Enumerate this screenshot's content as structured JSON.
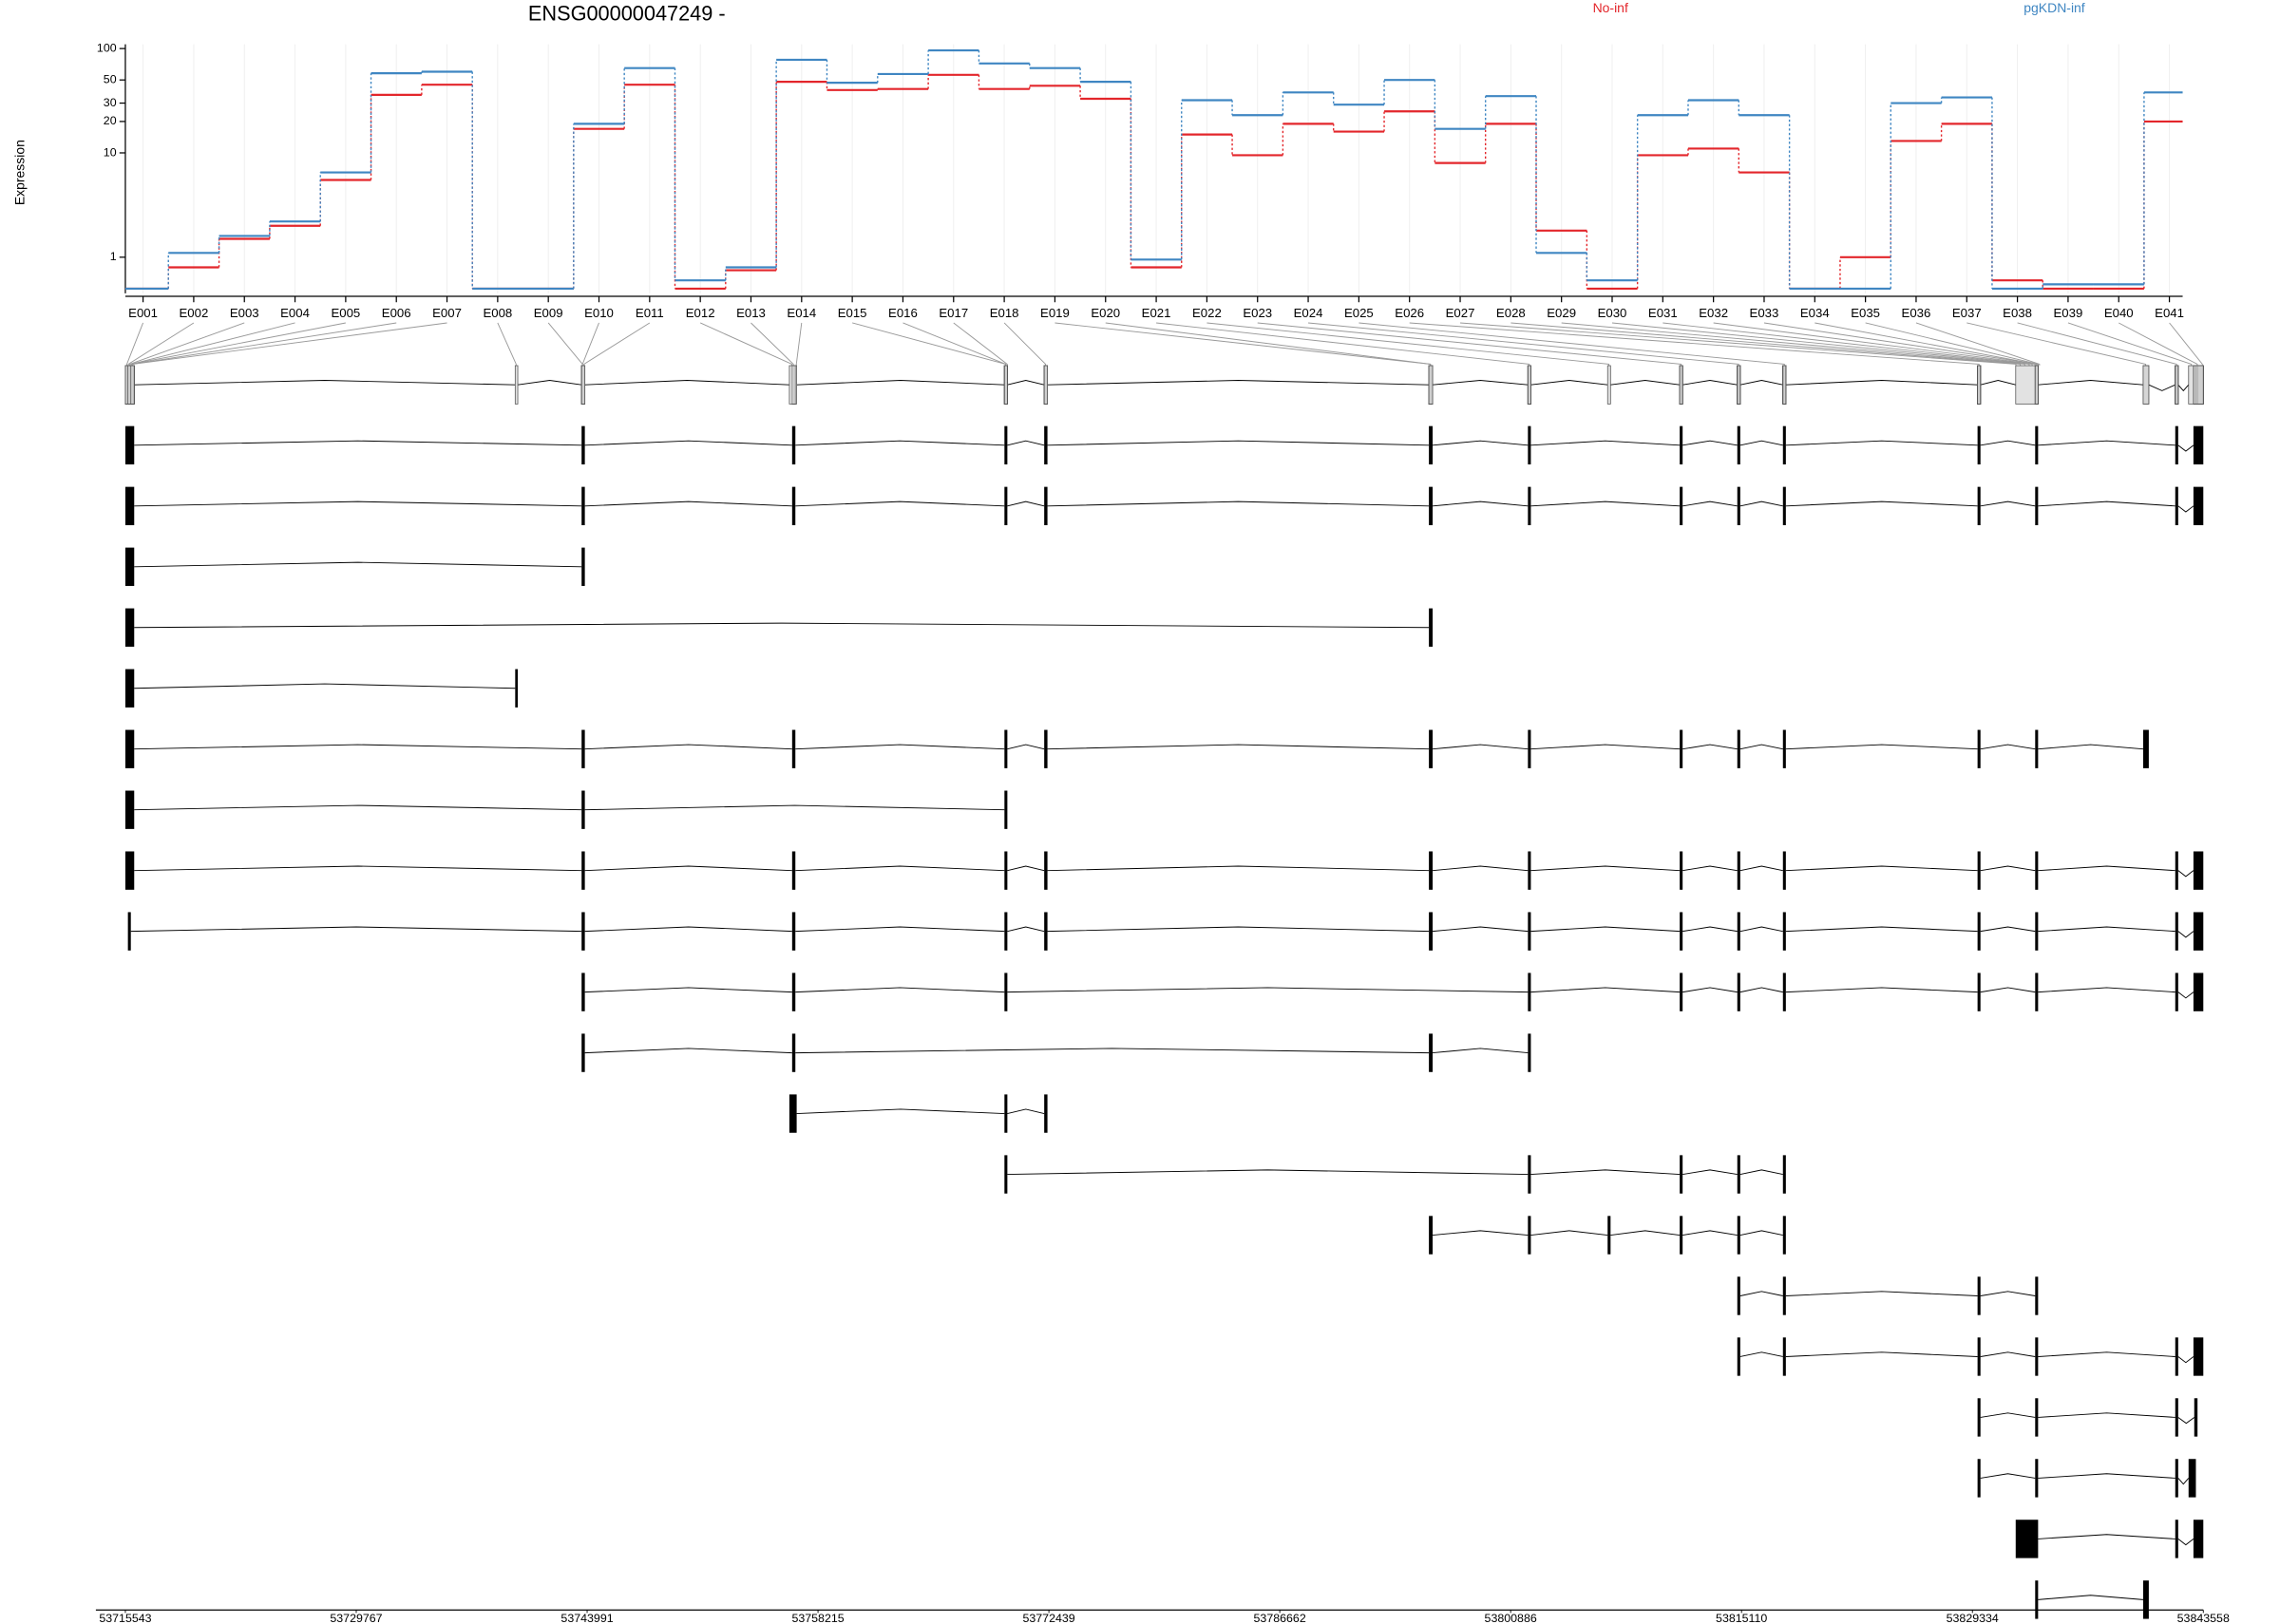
{
  "chart_data": [
    {
      "type": "step",
      "title": "ENSG00000047249 -",
      "y_label": "Expression",
      "log_scale": true,
      "grid": true,
      "categories": [
        "E001",
        "E002",
        "E003",
        "E004",
        "E005",
        "E006",
        "E007",
        "E008",
        "E009",
        "E010",
        "E011",
        "E012",
        "E013",
        "E014",
        "E015",
        "E016",
        "E017",
        "E018",
        "E019",
        "E020",
        "E021",
        "E022",
        "E023",
        "E024",
        "E025",
        "E026",
        "E027",
        "E028",
        "E029",
        "E030",
        "E031",
        "E032",
        "E033",
        "E034",
        "E035",
        "E036",
        "E037",
        "E038",
        "E039",
        "E040",
        "E041"
      ],
      "series": [
        {
          "name": "No-inf",
          "color": "#e3262b",
          "values": [
            0.5,
            0.8,
            1.5,
            2.0,
            5.5,
            36,
            45,
            0.5,
            0.5,
            17,
            45,
            0.5,
            0.75,
            48,
            40,
            41,
            56,
            41,
            44,
            33,
            0.8,
            15,
            9.5,
            19,
            16,
            25,
            8,
            19,
            1.8,
            0.5,
            9.5,
            11,
            6.5,
            0.5,
            1.0,
            13,
            19,
            0.6,
            0.5,
            0.5,
            20
          ]
        },
        {
          "name": "pgKDN-inf",
          "color": "#3f86c2",
          "values": [
            0.5,
            1.1,
            1.6,
            2.2,
            6.5,
            58,
            60,
            0.5,
            0.5,
            19,
            65,
            0.6,
            0.8,
            78,
            47,
            57,
            96,
            72,
            65,
            48,
            0.95,
            32,
            23,
            38,
            29,
            50,
            17,
            35,
            1.1,
            0.6,
            23,
            32,
            23,
            0.5,
            0.5,
            30,
            34,
            0.5,
            0.55,
            0.55,
            38
          ]
        }
      ],
      "ylim": [
        0.45,
        110
      ],
      "yticks": [
        1,
        10,
        20,
        30,
        50,
        100
      ]
    },
    {
      "type": "gene_model",
      "xlim": [
        53715543,
        53843558
      ],
      "xticks": [
        53715543,
        53729767,
        53743991,
        53758215,
        53772439,
        53786662,
        53800886,
        53815110,
        53829334,
        53843558
      ],
      "bin_positions": [
        53715634,
        53715725,
        53715816,
        53715906,
        53715906,
        53715997,
        53715997,
        53739618,
        53743707,
        53743707,
        53743797,
        53756607,
        53756698,
        53756880,
        53769780,
        53769780,
        53769871,
        53772233,
        53795945,
        53795945,
        53802032,
        53806938,
        53811390,
        53814933,
        53817749,
        53829741,
        53832012,
        53832285,
        53832557,
        53832830,
        53833012,
        53833194,
        53833375,
        53833285,
        53833375,
        53833466,
        53840007,
        53841915,
        53842824,
        53843187,
        53843500
      ],
      "transcripts": [
        [
          [
            53715543,
            53716088
          ],
          [
            53743650,
            53743850
          ],
          [
            53756620,
            53756820
          ],
          [
            53769700,
            53769880
          ],
          [
            53772150,
            53772350
          ],
          [
            53795850,
            53796080
          ],
          [
            53801950,
            53802130
          ],
          [
            53811300,
            53811480
          ],
          [
            53814850,
            53815030
          ],
          [
            53817660,
            53817840
          ],
          [
            53829650,
            53829830
          ],
          [
            53833200,
            53833380
          ],
          [
            53841830,
            53842010
          ],
          [
            53842950,
            53843558
          ]
        ],
        [
          [
            53715543,
            53716088
          ],
          [
            53743650,
            53743850
          ],
          [
            53756620,
            53756820
          ],
          [
            53769700,
            53769880
          ],
          [
            53772150,
            53772350
          ],
          [
            53795850,
            53796080
          ],
          [
            53801950,
            53802130
          ],
          [
            53811300,
            53811480
          ],
          [
            53814850,
            53815030
          ],
          [
            53817660,
            53817840
          ],
          [
            53829650,
            53829830
          ],
          [
            53833200,
            53833380
          ],
          [
            53841830,
            53842010
          ],
          [
            53842950,
            53843558
          ]
        ],
        [
          [
            53715543,
            53716088
          ],
          [
            53743650,
            53743850
          ]
        ],
        [
          [
            53715543,
            53716088
          ],
          [
            53795850,
            53796080
          ]
        ],
        [
          [
            53715543,
            53716088
          ],
          [
            53739560,
            53739720
          ]
        ],
        [
          [
            53715543,
            53716088
          ],
          [
            53743650,
            53743850
          ],
          [
            53756620,
            53756820
          ],
          [
            53769700,
            53769880
          ],
          [
            53772150,
            53772350
          ],
          [
            53795850,
            53796080
          ],
          [
            53801950,
            53802130
          ],
          [
            53811300,
            53811480
          ],
          [
            53814850,
            53815030
          ],
          [
            53817660,
            53817840
          ],
          [
            53829650,
            53829830
          ],
          [
            53833200,
            53833380
          ],
          [
            53839850,
            53840200
          ]
        ],
        [
          [
            53715543,
            53716088
          ],
          [
            53743650,
            53743850
          ],
          [
            53769700,
            53769880
          ]
        ],
        [
          [
            53715543,
            53716088
          ],
          [
            53743650,
            53743850
          ],
          [
            53756620,
            53756820
          ],
          [
            53769700,
            53769880
          ],
          [
            53772150,
            53772350
          ],
          [
            53795850,
            53796080
          ],
          [
            53801950,
            53802130
          ],
          [
            53811300,
            53811480
          ],
          [
            53814850,
            53815030
          ],
          [
            53817660,
            53817840
          ],
          [
            53829650,
            53829830
          ],
          [
            53833200,
            53833380
          ],
          [
            53841830,
            53842010
          ],
          [
            53842950,
            53843558
          ]
        ],
        [
          [
            53715700,
            53715880
          ],
          [
            53743650,
            53743850
          ],
          [
            53756620,
            53756820
          ],
          [
            53769700,
            53769880
          ],
          [
            53772150,
            53772350
          ],
          [
            53795850,
            53796080
          ],
          [
            53801950,
            53802130
          ],
          [
            53811300,
            53811480
          ],
          [
            53814850,
            53815030
          ],
          [
            53817660,
            53817840
          ],
          [
            53829650,
            53829830
          ],
          [
            53833200,
            53833380
          ],
          [
            53841830,
            53842010
          ],
          [
            53842950,
            53843558
          ]
        ],
        [
          [
            53743650,
            53743850
          ],
          [
            53756620,
            53756820
          ],
          [
            53769700,
            53769880
          ],
          [
            53801950,
            53802130
          ],
          [
            53811300,
            53811480
          ],
          [
            53814850,
            53815030
          ],
          [
            53817660,
            53817840
          ],
          [
            53829650,
            53829830
          ],
          [
            53833200,
            53833380
          ],
          [
            53841830,
            53842010
          ],
          [
            53842950,
            53843558
          ]
        ],
        [
          [
            53743650,
            53743850
          ],
          [
            53756620,
            53756820
          ],
          [
            53795850,
            53796080
          ],
          [
            53801950,
            53802130
          ]
        ],
        [
          [
            53756450,
            53756900
          ],
          [
            53769700,
            53769880
          ],
          [
            53772150,
            53772350
          ]
        ],
        [
          [
            53769700,
            53769880
          ],
          [
            53801950,
            53802130
          ],
          [
            53811300,
            53811480
          ],
          [
            53814850,
            53815030
          ],
          [
            53817660,
            53817840
          ]
        ],
        [
          [
            53795850,
            53796080
          ],
          [
            53801950,
            53802130
          ],
          [
            53806860,
            53807040
          ],
          [
            53811300,
            53811480
          ],
          [
            53814850,
            53815030
          ],
          [
            53817660,
            53817840
          ]
        ],
        [
          [
            53814850,
            53815030
          ],
          [
            53817660,
            53817840
          ],
          [
            53829650,
            53829830
          ],
          [
            53833200,
            53833380
          ]
        ],
        [
          [
            53814850,
            53815030
          ],
          [
            53817660,
            53817840
          ],
          [
            53829650,
            53829830
          ],
          [
            53833200,
            53833380
          ],
          [
            53841830,
            53842010
          ],
          [
            53842950,
            53843558
          ]
        ],
        [
          [
            53829650,
            53829830
          ],
          [
            53833200,
            53833380
          ],
          [
            53841830,
            53842010
          ],
          [
            53843000,
            53843200
          ]
        ],
        [
          [
            53829650,
            53829830
          ],
          [
            53833200,
            53833380
          ],
          [
            53841830,
            53842010
          ],
          [
            53842650,
            53843100
          ]
        ],
        [
          [
            53832000,
            53833380
          ],
          [
            53841830,
            53842010
          ],
          [
            53842950,
            53843558
          ]
        ],
        [
          [
            53833200,
            53833380
          ],
          [
            53839850,
            53840200
          ]
        ]
      ]
    }
  ]
}
